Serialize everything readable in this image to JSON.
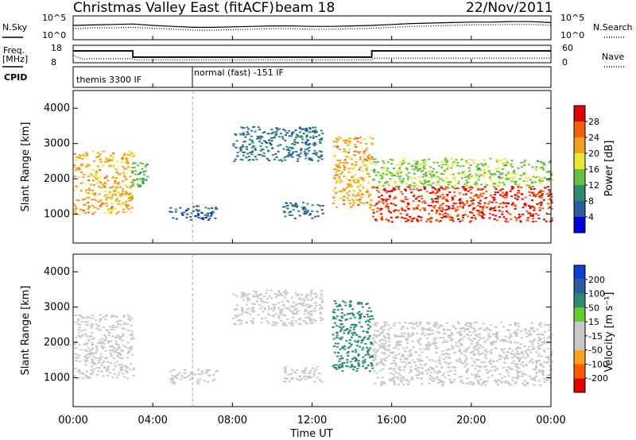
{
  "header": {
    "station": "Christmas Valley East (fitACF)",
    "beam": "beam 18",
    "date": "22/Nov/2011"
  },
  "strip_labels": {
    "nsky": "N.Sky",
    "nsearch": "N.Search",
    "freq": "Freq.",
    "freq_unit": "[MHz]",
    "nave": "Nave",
    "cpid": "CPID",
    "nsky_ticks": [
      "10^5",
      "10^0"
    ],
    "nsearch_ticks": [
      "10^5",
      "10^0"
    ],
    "freq_ticks": [
      "18",
      "8"
    ],
    "nave_ticks": [
      "60",
      "0"
    ],
    "cpid_segments": [
      "themis 3300 IF",
      "normal (fast) -151 IF"
    ]
  },
  "colors": {
    "power_scale": [
      "#0000dd",
      "#2e5aa0",
      "#2f8a6e",
      "#66c040",
      "#e8e838",
      "#f0a020",
      "#f06010",
      "#e00000"
    ],
    "velocity_scale": [
      "#e00000",
      "#ff5a00",
      "#ffa020",
      "#c8c8c8",
      "#c8c8c8",
      "#66cc33",
      "#2e8a6e",
      "#2e5aa0",
      "#0a3fd0"
    ],
    "ground_scatter": "#c8c8c8"
  },
  "chart_data": [
    {
      "panel": "noise",
      "type": "line",
      "series": [
        {
          "name": "N.Sky",
          "style": "solid"
        },
        {
          "name": "N.Search",
          "style": "dotted"
        }
      ],
      "x": [
        0,
        1,
        2,
        3,
        4,
        5,
        6,
        7,
        8,
        9,
        10,
        11,
        12,
        13,
        14,
        15,
        16,
        17,
        18,
        19,
        20,
        21,
        22,
        23,
        24
      ],
      "values_log10": [
        [
          3.0,
          3.1,
          3.2,
          3.3,
          3.0,
          2.8,
          2.6,
          2.6,
          2.7,
          2.8,
          2.9,
          2.9,
          2.8,
          2.8,
          2.9,
          3.0,
          3.2,
          3.4,
          3.5,
          3.6,
          3.7,
          3.7,
          3.8,
          3.8,
          3.6
        ],
        [
          2.3,
          2.5,
          2.5,
          2.6,
          2.4,
          2.2,
          2.0,
          2.0,
          2.1,
          2.2,
          2.3,
          2.3,
          2.2,
          2.2,
          2.3,
          2.4,
          2.6,
          2.8,
          2.9,
          3.0,
          3.1,
          3.1,
          3.2,
          3.2,
          3.0
        ]
      ],
      "ylim": [
        0,
        5
      ]
    },
    {
      "panel": "frequency",
      "type": "line",
      "series": [
        {
          "name": "Freq",
          "style": "solid",
          "x": [
            0,
            3.0,
            3.0,
            15.0,
            15.0,
            24
          ],
          "values": [
            14.8,
            14.8,
            11.2,
            11.2,
            14.8,
            14.8
          ]
        },
        {
          "name": "Nave",
          "style": "dotted",
          "x": [
            0,
            0.5,
            1.0,
            3.0,
            3.1,
            15.0,
            15.1,
            24
          ],
          "values": [
            25,
            12,
            14,
            14,
            10,
            10,
            16,
            16
          ]
        }
      ],
      "ylim_freq": [
        8,
        18
      ],
      "ylim_nave": [
        0,
        60
      ]
    },
    {
      "panel": "cpid",
      "type": "table",
      "segments": [
        {
          "label": "themis 3300 IF",
          "start": 0,
          "end": 6
        },
        {
          "label": "normal (fast) -151 IF",
          "start": 6,
          "end": 24
        }
      ]
    },
    {
      "panel": "power",
      "type": "heatmap",
      "ylabel": "Slant Range [km]",
      "colorbar_label": "Power [dB]",
      "colorbar_ticks": [
        4,
        8,
        12,
        16,
        20,
        24,
        28
      ],
      "clim": [
        0,
        30
      ],
      "xlim": [
        0,
        24
      ],
      "ylim": [
        180,
        4500
      ],
      "yticks": [
        1000,
        2000,
        3000,
        4000
      ],
      "regions": [
        {
          "t0": 0.0,
          "t1": 3.0,
          "r0": 1000,
          "r1": 2800,
          "value": 20
        },
        {
          "t0": 2.9,
          "t1": 3.7,
          "r0": 1800,
          "r1": 2500,
          "value": 12
        },
        {
          "t0": 4.8,
          "t1": 7.2,
          "r0": 850,
          "r1": 1250,
          "value": 6
        },
        {
          "t0": 8.0,
          "t1": 12.5,
          "r0": 2500,
          "r1": 3500,
          "value": 8
        },
        {
          "t0": 10.5,
          "t1": 12.5,
          "r0": 900,
          "r1": 1350,
          "value": 7
        },
        {
          "t0": 13.0,
          "t1": 15.0,
          "r0": 1200,
          "r1": 3200,
          "value": 20
        },
        {
          "t0": 15.0,
          "t1": 24.0,
          "r0": 800,
          "r1": 1800,
          "value": 26
        },
        {
          "t0": 15.0,
          "t1": 24.0,
          "r0": 1800,
          "r1": 2600,
          "value": 14
        }
      ]
    },
    {
      "panel": "velocity",
      "type": "heatmap",
      "ylabel": "Slant Range [km]",
      "xlabel": "Time UT",
      "colorbar_label": "Velocity [m s⁻¹]",
      "colorbar_ticks": [
        -200,
        -100,
        -50,
        -15,
        15,
        50,
        100,
        200
      ],
      "xlim": [
        0,
        24
      ],
      "ylim": [
        180,
        4500
      ],
      "xticks": [
        "00:00",
        "04:00",
        "08:00",
        "12:00",
        "16:00",
        "20:00",
        "00:00"
      ],
      "yticks": [
        1000,
        2000,
        3000,
        4000
      ],
      "regions": [
        {
          "t0": 0.0,
          "t1": 3.0,
          "r0": 1000,
          "r1": 2800,
          "value": 0
        },
        {
          "t0": 4.8,
          "t1": 7.2,
          "r0": 850,
          "r1": 1250,
          "value": 0
        },
        {
          "t0": 8.0,
          "t1": 12.5,
          "r0": 2500,
          "r1": 3500,
          "value": 0
        },
        {
          "t0": 10.5,
          "t1": 12.5,
          "r0": 900,
          "r1": 1350,
          "value": -30
        },
        {
          "t0": 13.0,
          "t1": 15.0,
          "r0": 1200,
          "r1": 3200,
          "value": 60
        },
        {
          "t0": 15.0,
          "t1": 24.0,
          "r0": 800,
          "r1": 2600,
          "value": 0
        }
      ]
    }
  ]
}
